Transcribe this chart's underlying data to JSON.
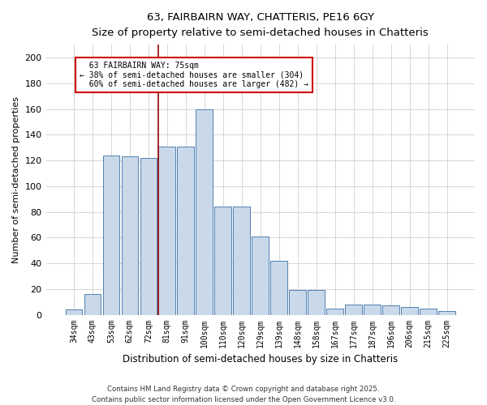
{
  "title_line1": "63, FAIRBAIRN WAY, CHATTERIS, PE16 6GY",
  "title_line2": "Size of property relative to semi-detached houses in Chatteris",
  "xlabel": "Distribution of semi-detached houses by size in Chatteris",
  "ylabel": "Number of semi-detached properties",
  "categories": [
    "34sqm",
    "43sqm",
    "53sqm",
    "62sqm",
    "72sqm",
    "81sqm",
    "91sqm",
    "100sqm",
    "110sqm",
    "120sqm",
    "129sqm",
    "139sqm",
    "148sqm",
    "158sqm",
    "167sqm",
    "177sqm",
    "187sqm",
    "196sqm",
    "206sqm",
    "215sqm",
    "225sqm"
  ],
  "bar_values": [
    4,
    16,
    124,
    123,
    122,
    131,
    131,
    160,
    84,
    84,
    61,
    42,
    19,
    19,
    5,
    8,
    8,
    7,
    6,
    5,
    3
  ],
  "annotation_text": "  63 FAIRBAIRN WAY: 75sqm\n← 38% of semi-detached houses are smaller (304)\n  60% of semi-detached houses are larger (482) →",
  "bar_color": "#c9d9ea",
  "bar_edge_color": "#5080b0",
  "vline_color": "#990000",
  "annotation_box_color": "#ffffff",
  "annotation_box_edge": "#cc0000",
  "grid_color": "#d0d0d0",
  "background_color": "#ffffff",
  "footer_line1": "Contains HM Land Registry data © Crown copyright and database right 2025.",
  "footer_line2": "Contains public sector information licensed under the Open Government Licence v3.0.",
  "ylim": [
    0,
    210
  ],
  "yticks": [
    0,
    20,
    40,
    60,
    80,
    100,
    120,
    140,
    160,
    180,
    200
  ]
}
